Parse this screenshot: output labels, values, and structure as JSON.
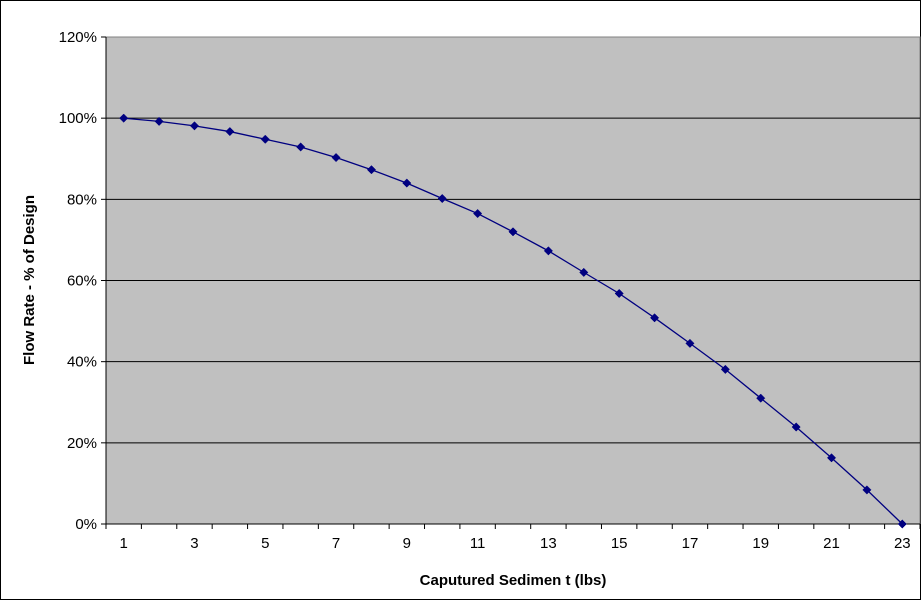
{
  "colors": {
    "plot_background": "#c0c0c0",
    "gridline": "#000000",
    "series_line": "#000080",
    "marker": "#000080",
    "chart_border": "#000000"
  },
  "chart_data": {
    "type": "line",
    "title": "",
    "xlabel": "Caputured Sedimen t (lbs)",
    "ylabel": "Flow Rate - % of Design",
    "x": [
      1,
      2,
      3,
      4,
      5,
      6,
      7,
      8,
      9,
      10,
      11,
      12,
      13,
      14,
      15,
      16,
      17,
      18,
      19,
      20,
      21,
      22,
      23
    ],
    "x_tick_labels": [
      "1",
      "3",
      "5",
      "7",
      "9",
      "11",
      "13",
      "15",
      "17",
      "19",
      "21",
      "23"
    ],
    "y_tick_labels": [
      "0%",
      "20%",
      "40%",
      "60%",
      "80%",
      "100%",
      "120%"
    ],
    "ylim": [
      0,
      120
    ],
    "y_unit": "%",
    "grid": "horizontal",
    "legend": "none",
    "marker": "diamond",
    "series": [
      {
        "values": [
          100,
          99.2,
          98.1,
          96.7,
          94.8,
          92.9,
          90.3,
          87.3,
          84.0,
          80.2,
          76.5,
          72.0,
          67.3,
          62.0,
          56.8,
          50.8,
          44.5,
          38.1,
          31.0,
          23.9,
          16.3,
          8.4,
          0
        ]
      }
    ]
  }
}
